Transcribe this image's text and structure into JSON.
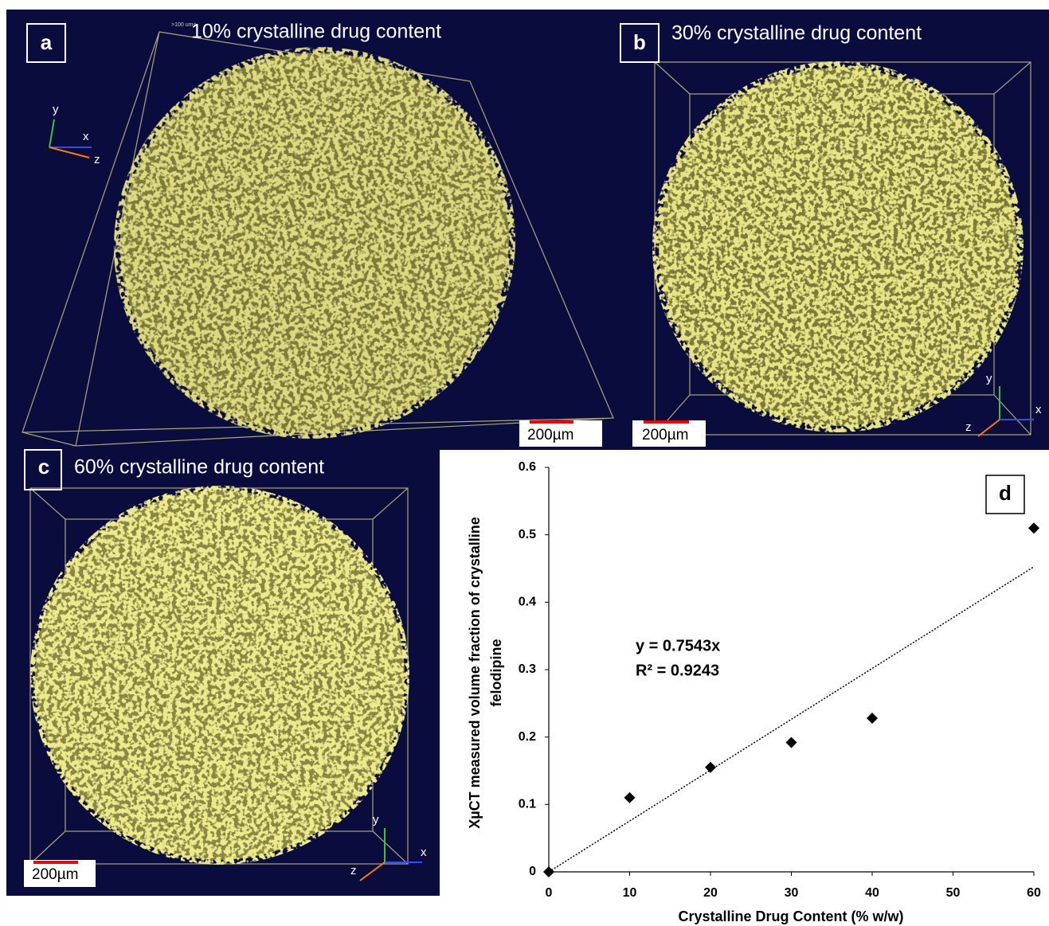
{
  "panels": [
    {
      "label": "a",
      "title": "10% crystalline drug content",
      "scale_bar": "200µm",
      "frame_label": ">100 um<",
      "axes": [
        "y",
        "x",
        "z"
      ]
    },
    {
      "label": "b",
      "title": "30% crystalline drug content",
      "scale_bar": "200µm",
      "axes": [
        "y",
        "x",
        "z"
      ]
    },
    {
      "label": "c",
      "title": "60% crystalline drug content",
      "scale_bar": "200µm",
      "axes": [
        "y",
        "x",
        "z"
      ]
    }
  ],
  "chart_data": {
    "type": "scatter",
    "label": "d",
    "x_label": "Crystalline Drug Content (% w/w)",
    "y_label": [
      "XµCT measured volume fraction of crystalline",
      "felodipine"
    ],
    "annotations": [
      "y = 0.7543x",
      "R² = 0.9243"
    ],
    "x": [
      0,
      10,
      20,
      30,
      40,
      60
    ],
    "values": [
      0,
      0.11,
      0.155,
      0.192,
      0.228,
      0.51
    ],
    "color": "#000000",
    "trendline": {
      "x": [
        0,
        60
      ],
      "values": [
        0,
        0.4526
      ]
    },
    "xlim": [
      0,
      60
    ],
    "xticks": [
      0,
      10,
      20,
      30,
      40,
      50,
      60
    ],
    "ylim": [
      0,
      0.6
    ],
    "yticks": [
      0,
      0.1,
      0.2,
      0.3,
      0.4,
      0.5,
      0.6
    ]
  }
}
